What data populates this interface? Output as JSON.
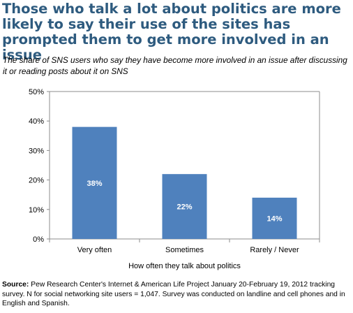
{
  "title": "Those who talk a lot about politics are more likely to say their use of the sites has prompted them to get more involved in an issue",
  "subtitle": "The share of SNS users who say they have become more involved in an issue after discussing it or reading posts about it on SNS",
  "source": {
    "label": "Source:",
    "text": "Pew Research Center's Internet & American Life Project January 20-February 19, 2012 tracking survey. N for social networking site users = 1,047. Survey was conducted on landline and cell phones and in English and Spanish."
  },
  "colors": {
    "bar": "#4f81bd",
    "title": "#2e5b7f",
    "axis": "#8c8c8c"
  },
  "chart_data": {
    "type": "bar",
    "categories": [
      "Very often",
      "Sometimes",
      "Rarely / Never"
    ],
    "values": [
      38,
      22,
      14
    ],
    "value_labels": [
      "38%",
      "22%",
      "14%"
    ],
    "xlabel": "How often they talk about politics",
    "ylabel": "",
    "ylim": [
      0,
      50
    ],
    "yticks": [
      0,
      10,
      20,
      30,
      40,
      50
    ],
    "ytick_labels": [
      "0%",
      "10%",
      "20%",
      "30%",
      "40%",
      "50%"
    ],
    "grid": false,
    "legend": "none"
  }
}
